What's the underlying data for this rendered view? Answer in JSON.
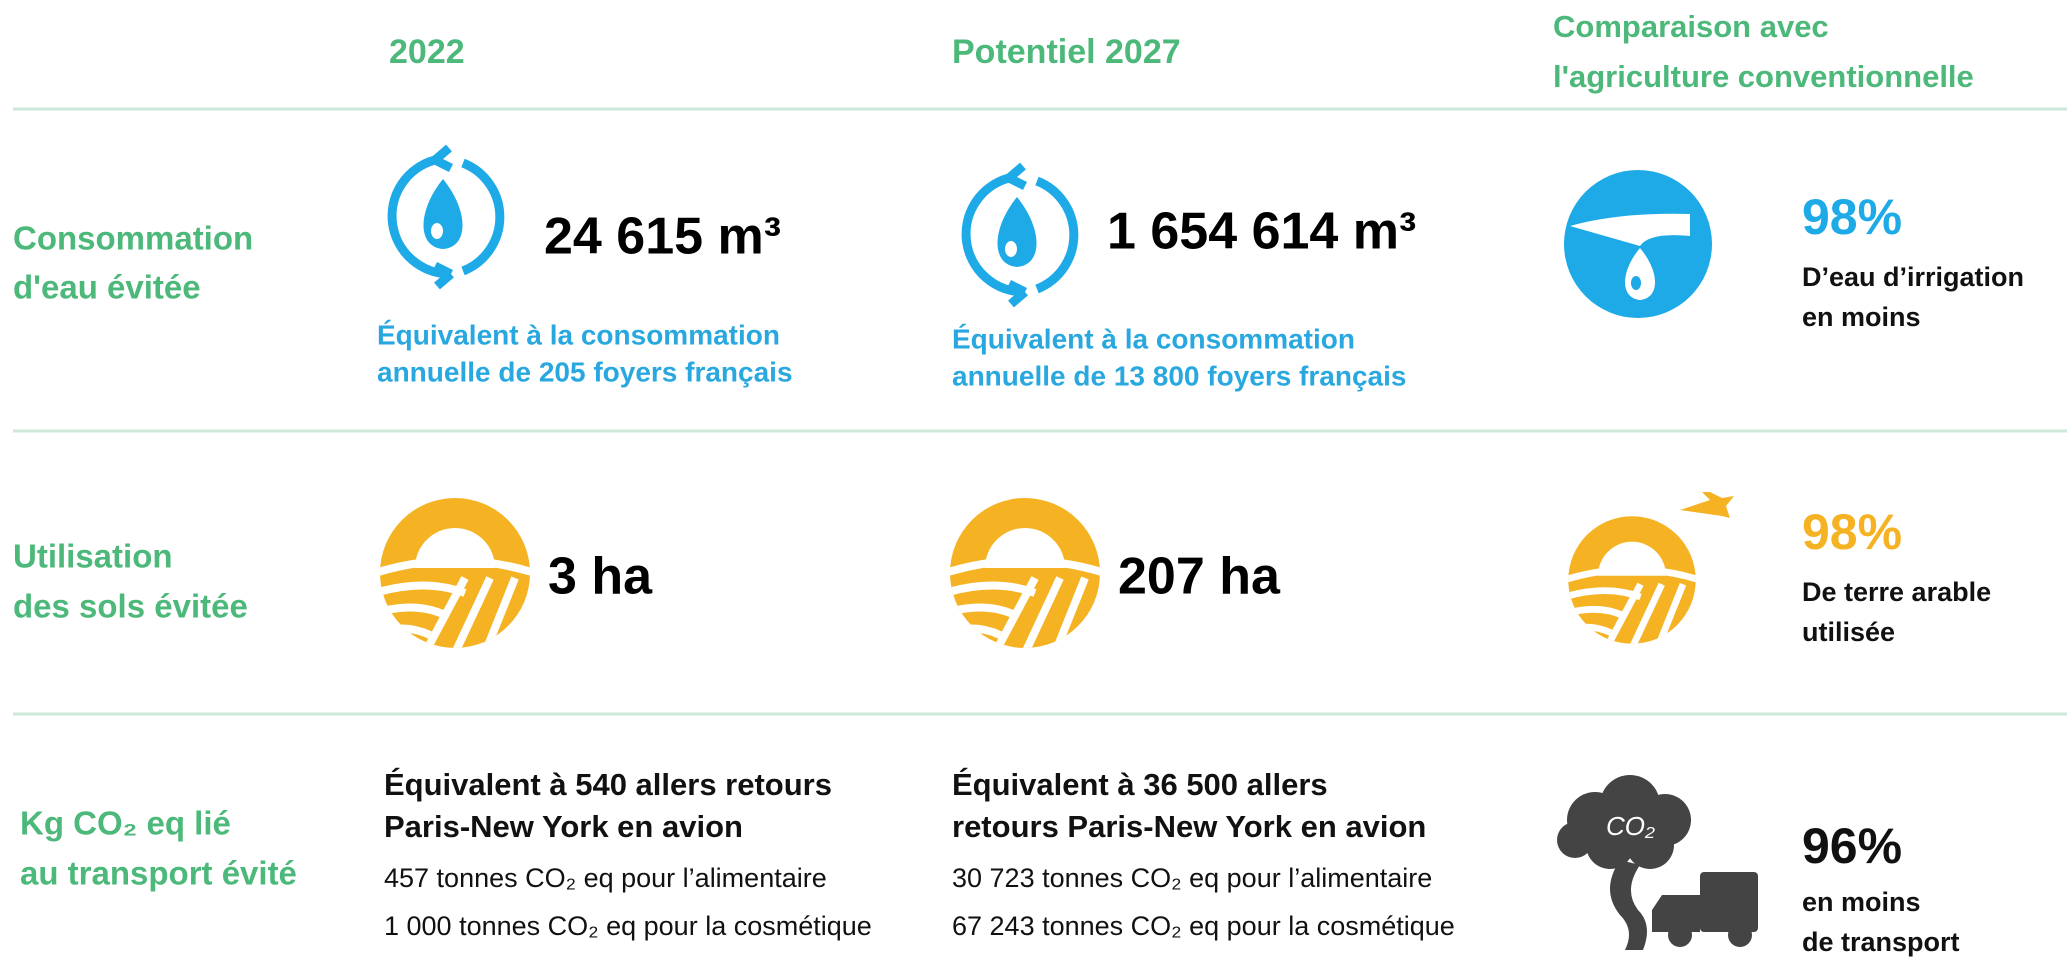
{
  "header": {
    "col1": "2022",
    "col2": "Potentiel 2027",
    "col3": [
      "Comparaison avec",
      "l'agriculture conventionnelle"
    ]
  },
  "rows": [
    {
      "label": [
        "Consommation",
        "d'eau évitée"
      ],
      "value_2022": "24 615 m³",
      "note_2022": [
        "Équivalent à la consommation",
        "annuelle de 205 foyers français"
      ],
      "value_2027": "1 654 614 m³",
      "note_2027": [
        "Équivalent à la consommation",
        "annuelle de 13 800 foyers français"
      ],
      "comparison": {
        "percent": "98%",
        "text": [
          "D’eau d’irrigation",
          "en moins"
        ]
      }
    },
    {
      "label": [
        "Utilisation",
        "des sols évitée"
      ],
      "value_2022": "3 ha",
      "value_2027": "207 ha",
      "comparison": {
        "percent": "98%",
        "text": [
          "De terre arable",
          "utilisée"
        ]
      }
    },
    {
      "label": [
        "Kg CO₂ eq lié",
        "au transport évité"
      ],
      "note_2022": [
        "Équivalent à 540 allers retours",
        "Paris-New York en avion"
      ],
      "details_2022": [
        "457 tonnes CO₂ eq pour l’alimentaire",
        "1 000 tonnes CO₂ eq pour la cosmétique"
      ],
      "note_2027": [
        "Équivalent à 36 500 allers",
        "retours Paris-New York en avion"
      ],
      "details_2027": [
        "30 723 tonnes CO₂ eq pour l’alimentaire",
        "67 243 tonnes CO₂ eq pour la cosmétique"
      ],
      "comparison": {
        "percent": "96%",
        "text": [
          "en moins",
          "de transport"
        ]
      }
    }
  ]
}
